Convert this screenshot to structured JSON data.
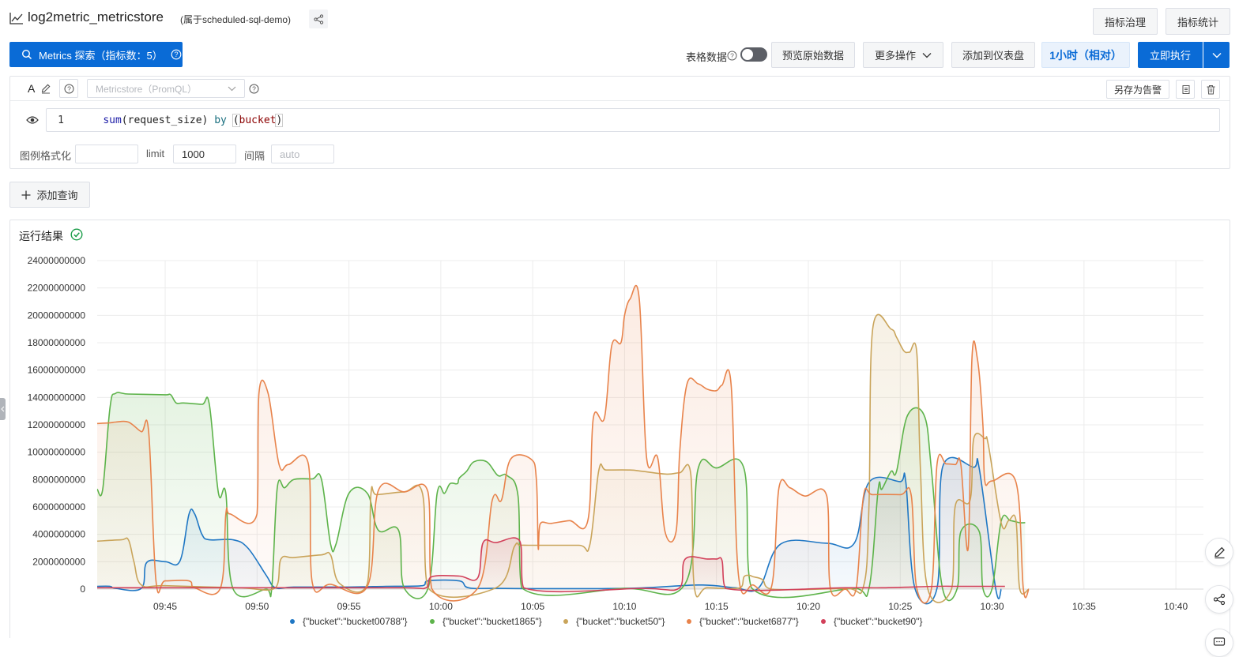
{
  "header": {
    "title": "log2metric_metricstore",
    "subtitle": "(属于scheduled-sql-demo)",
    "buttons": {
      "governance": "指标治理",
      "stats": "指标统计"
    }
  },
  "toolbar": {
    "explore_label": "Metrics 探索（指标数：5）",
    "table_data_label": "表格数据",
    "preview_raw": "预览原始数据",
    "more_actions": "更多操作",
    "add_dashboard": "添加到仪表盘",
    "time_range": "1小时（相对）",
    "run_now": "立即执行"
  },
  "query": {
    "mode_letter": "A",
    "source_placeholder": "Metricstore（PromQL）",
    "save_alert": "另存为告警",
    "line_number": "1",
    "code": {
      "fn": "sum",
      "open": "(",
      "metric": "request_size",
      "close": ")",
      "kw": "by",
      "gopen": "(",
      "group": "bucket",
      "gclose": ")"
    },
    "legend_format_label": "图例格式化",
    "legend_format_value": "",
    "limit_label": "limit",
    "limit_value": "1000",
    "interval_label": "间隔",
    "interval_placeholder": "auto"
  },
  "add_query": "添加查询",
  "result": {
    "title": "运行结果"
  },
  "colors": {
    "primary": "#0a6bd6",
    "bucket00788": "#1f77c4",
    "bucket1865": "#5db34a",
    "bucket50": "#c9a45a",
    "bucket6877": "#e8834b",
    "bucket90": "#d2405a",
    "success": "#1c9d4a"
  },
  "chart_data": {
    "type": "area",
    "y_ticks": [
      "24000000000",
      "22000000000",
      "20000000000",
      "18000000000",
      "16000000000",
      "14000000000",
      "12000000000",
      "10000000000",
      "8000000000",
      "6000000000",
      "4000000000",
      "2000000000",
      "0"
    ],
    "ylim": [
      0,
      24000000000
    ],
    "x_ticks": [
      "09:45",
      "09:50",
      "09:55",
      "10:00",
      "10:05",
      "10:10",
      "10:15",
      "10:20",
      "10:25",
      "10:30",
      "10:35",
      "10:40"
    ],
    "x_start_minute": 581.3,
    "x_end_minute": 641.5,
    "grid": true,
    "legend_position": "bottom",
    "series": [
      {
        "name": "{\"bucket\":\"bucket00788\"}",
        "color_key": "bucket00788",
        "points": [
          [
            581.3,
            0.2
          ],
          [
            582,
            0.2
          ],
          [
            582.3,
            0.05
          ],
          [
            583.7,
            0.05
          ],
          [
            584,
            1.95
          ],
          [
            585,
            2.0
          ],
          [
            585.8,
            2.05
          ],
          [
            586.3,
            5.5
          ],
          [
            586.6,
            5.5
          ],
          [
            587,
            4.0
          ],
          [
            587.4,
            3.6
          ],
          [
            588.7,
            3.6
          ],
          [
            589.5,
            3.0
          ],
          [
            590.5,
            1.0
          ],
          [
            591,
            0.1
          ],
          [
            592,
            0.15
          ],
          [
            595,
            0.15
          ],
          [
            597,
            0.2
          ],
          [
            599,
            0.25
          ],
          [
            599.3,
            0.6
          ],
          [
            601,
            0.6
          ],
          [
            601.5,
            0.1
          ],
          [
            603,
            0.05
          ],
          [
            610,
            0.05
          ],
          [
            614,
            0.3
          ],
          [
            616,
            0.1
          ],
          [
            617.3,
            0.1
          ],
          [
            618.5,
            3.3
          ],
          [
            621,
            3.35
          ],
          [
            622.5,
            3.35
          ],
          [
            623.3,
            7.8
          ],
          [
            625,
            7.85
          ],
          [
            625.3,
            7.85
          ],
          [
            625.8,
            0.05
          ],
          [
            627,
            0.05
          ],
          [
            627.3,
            8.9
          ],
          [
            629,
            8.9
          ],
          [
            629.3,
            8.8
          ],
          [
            630.2,
            0.0
          ],
          [
            630.5,
            0.0
          ]
        ]
      },
      {
        "name": "{\"bucket\":\"bucket1865\"}",
        "color_key": "bucket1865",
        "points": [
          [
            581.3,
            7.3
          ],
          [
            581.6,
            7.3
          ],
          [
            582,
            13.3
          ],
          [
            582.3,
            14.3
          ],
          [
            583,
            14.25
          ],
          [
            585,
            14.2
          ],
          [
            585.3,
            14.2
          ],
          [
            585.6,
            13.6
          ],
          [
            586,
            13.6
          ],
          [
            587,
            13.5
          ],
          [
            587.4,
            13.5
          ],
          [
            587.9,
            7.0
          ],
          [
            588.3,
            7.0
          ],
          [
            588.7,
            0.0
          ],
          [
            590.5,
            0.0
          ],
          [
            590.8,
            0.05
          ],
          [
            591.1,
            7.4
          ],
          [
            591.5,
            7.4
          ],
          [
            592,
            8.0
          ],
          [
            593,
            8.05
          ],
          [
            593.5,
            8.05
          ],
          [
            594,
            3.3
          ],
          [
            594.3,
            3.3
          ],
          [
            595,
            7.0
          ],
          [
            596,
            7.0
          ],
          [
            596.6,
            4.3
          ],
          [
            597.7,
            4.3
          ],
          [
            598,
            0.1
          ],
          [
            599.3,
            0.05
          ],
          [
            599.8,
            7.0
          ],
          [
            600.2,
            7.0
          ],
          [
            600.5,
            7.7
          ],
          [
            600.9,
            7.7
          ],
          [
            601,
            8.1
          ],
          [
            601.4,
            8.6
          ],
          [
            601.8,
            9.3
          ],
          [
            602.5,
            9.3
          ],
          [
            603.1,
            8.3
          ],
          [
            603.6,
            8.3
          ],
          [
            604.2,
            6.8
          ],
          [
            604.4,
            0.1
          ],
          [
            610,
            0.05
          ],
          [
            613.3,
            0.4
          ],
          [
            614,
            8.8
          ],
          [
            615,
            8.85
          ],
          [
            616.5,
            8.8
          ],
          [
            616.9,
            0.1
          ],
          [
            622.5,
            0.05
          ],
          [
            623.3,
            0.05
          ],
          [
            623.8,
            7.3
          ],
          [
            624,
            7.3
          ],
          [
            624.5,
            8.6
          ],
          [
            624.8,
            8.6
          ],
          [
            625.4,
            12.7
          ],
          [
            626.3,
            12.7
          ],
          [
            626.7,
            8.7
          ],
          [
            627.3,
            0.05
          ],
          [
            628.1,
            0.05
          ],
          [
            628.3,
            4.2
          ],
          [
            629.3,
            4.2
          ],
          [
            629.5,
            0.05
          ],
          [
            630,
            0.05
          ],
          [
            630.5,
            5.0
          ],
          [
            631,
            5.0
          ],
          [
            631.5,
            4.85
          ],
          [
            631.8,
            4.85
          ]
        ]
      },
      {
        "name": "{\"bucket\":\"bucket50\"}",
        "color_key": "bucket50",
        "points": [
          [
            581.3,
            3.5
          ],
          [
            582.6,
            3.6
          ],
          [
            583,
            3.6
          ],
          [
            583.3,
            2.0
          ],
          [
            583.7,
            0.3
          ],
          [
            585,
            0.25
          ],
          [
            589,
            0.1
          ],
          [
            591,
            0.1
          ],
          [
            591.3,
            2.2
          ],
          [
            592,
            2.3
          ],
          [
            593.5,
            2.5
          ],
          [
            594,
            2.5
          ],
          [
            594.5,
            0.4
          ],
          [
            596,
            0.4
          ],
          [
            596.2,
            7.0
          ],
          [
            596.5,
            6.9
          ],
          [
            598,
            7.1
          ],
          [
            599,
            7.0
          ],
          [
            599.3,
            0.1
          ],
          [
            603,
            0.1
          ],
          [
            604,
            3.1
          ],
          [
            604.3,
            3.2
          ],
          [
            605,
            3.2
          ],
          [
            607.5,
            3.2
          ],
          [
            608.1,
            3.2
          ],
          [
            608.6,
            8.7
          ],
          [
            609,
            8.7
          ],
          [
            610.3,
            8.7
          ],
          [
            611,
            8.6
          ],
          [
            612.3,
            8.4
          ],
          [
            613,
            8.5
          ],
          [
            613.6,
            8.4
          ],
          [
            613.8,
            0.1
          ],
          [
            614.5,
            0.1
          ],
          [
            616.3,
            0.1
          ],
          [
            616.5,
            0.9
          ],
          [
            616.8,
            1.0
          ],
          [
            617,
            0.9
          ],
          [
            617.5,
            0.7
          ],
          [
            618,
            0.0
          ],
          [
            622,
            0.05
          ],
          [
            623,
            0.2
          ],
          [
            623.3,
            6.1
          ],
          [
            623.5,
            19.0
          ],
          [
            624.5,
            19.0
          ],
          [
            624.8,
            18.4
          ],
          [
            625.2,
            17.4
          ],
          [
            625.5,
            17.3
          ],
          [
            625.9,
            17.3
          ],
          [
            626.1,
            8.7
          ],
          [
            626.5,
            0.0
          ],
          [
            627.8,
            0.05
          ],
          [
            628,
            6.1
          ],
          [
            628.8,
            6.5
          ],
          [
            629,
            11.0
          ],
          [
            629.6,
            11.0
          ],
          [
            629.8,
            10.5
          ],
          [
            630.5,
            4.8
          ],
          [
            630.9,
            5.0
          ],
          [
            631.3,
            5.0
          ],
          [
            631.5,
            0.05
          ],
          [
            632,
            0.0
          ]
        ]
      },
      {
        "name": "{\"bucket\":\"bucket6877\"}",
        "color_key": "bucket6877",
        "points": [
          [
            581.3,
            12.1
          ],
          [
            582,
            12.15
          ],
          [
            582.3,
            12.2
          ],
          [
            583,
            12.2
          ],
          [
            583.7,
            11.5
          ],
          [
            584.1,
            11.5
          ],
          [
            584.5,
            0.6
          ],
          [
            585,
            0.6
          ],
          [
            586.3,
            0.6
          ],
          [
            586.6,
            0.1
          ],
          [
            588,
            0.05
          ],
          [
            588.3,
            5.5
          ],
          [
            588.5,
            5.5
          ],
          [
            590,
            5.5
          ],
          [
            590.1,
            14.3
          ],
          [
            590.6,
            14.3
          ],
          [
            591.2,
            9.1
          ],
          [
            591.7,
            9.1
          ],
          [
            592.8,
            9.1
          ],
          [
            593,
            0.5
          ],
          [
            594,
            0.35
          ],
          [
            596,
            0.2
          ],
          [
            596.6,
            7.2
          ],
          [
            598,
            7.1
          ],
          [
            599.3,
            7.1
          ],
          [
            599.5,
            0.05
          ],
          [
            602,
            0.05
          ],
          [
            602.8,
            6.5
          ],
          [
            603.3,
            6.5
          ],
          [
            603.8,
            9.5
          ],
          [
            604.9,
            9.5
          ],
          [
            605.2,
            8.0
          ],
          [
            605.3,
            3.0
          ],
          [
            605.4,
            4.75
          ],
          [
            606,
            4.8
          ],
          [
            607,
            5.0
          ],
          [
            608,
            5.0
          ],
          [
            608.3,
            12.5
          ],
          [
            608.9,
            12.5
          ],
          [
            609.3,
            17.8
          ],
          [
            609.8,
            18.0
          ],
          [
            610,
            20.0
          ],
          [
            610.3,
            21.2
          ],
          [
            610.8,
            21.2
          ],
          [
            611.2,
            9.6
          ],
          [
            611.8,
            9.6
          ],
          [
            612.2,
            4.2
          ],
          [
            612.8,
            4.2
          ],
          [
            613,
            10.0
          ],
          [
            613.4,
            15.0
          ],
          [
            614,
            15.0
          ],
          [
            614.5,
            14.6
          ],
          [
            615,
            14.5
          ],
          [
            615.3,
            14.9
          ],
          [
            615.8,
            14.9
          ],
          [
            616.2,
            1.0
          ],
          [
            617,
            0.3
          ],
          [
            618,
            0.2
          ],
          [
            618.4,
            7.4
          ],
          [
            619,
            7.4
          ],
          [
            619.8,
            6.8
          ],
          [
            621,
            6.8
          ],
          [
            621.2,
            0.05
          ],
          [
            622,
            0.0
          ],
          [
            622.6,
            0.05
          ],
          [
            623,
            6.8
          ],
          [
            623.5,
            6.9
          ],
          [
            625,
            6.9
          ],
          [
            625.6,
            6.85
          ],
          [
            625.9,
            0.05
          ],
          [
            626.7,
            0.05
          ],
          [
            627,
            9.1
          ],
          [
            627.5,
            9.15
          ],
          [
            628,
            9.1
          ],
          [
            628.3,
            9.1
          ],
          [
            628.7,
            3.0
          ],
          [
            628.9,
            16.8
          ],
          [
            629.2,
            16.8
          ],
          [
            629.5,
            12.0
          ],
          [
            629.6,
            7.9
          ],
          [
            630,
            7.9
          ],
          [
            631.3,
            7.8
          ],
          [
            631.7,
            0.0
          ],
          [
            632,
            0.0
          ]
        ]
      },
      {
        "name": "{\"bucket\":\"bucket90\"}",
        "color_key": "bucket90",
        "points": [
          [
            581.3,
            0.1
          ],
          [
            588,
            0.1
          ],
          [
            592,
            0.1
          ],
          [
            598,
            0.1
          ],
          [
            599.2,
            0.1
          ],
          [
            599.5,
            0.9
          ],
          [
            601,
            0.95
          ],
          [
            602,
            0.8
          ],
          [
            602.3,
            3.4
          ],
          [
            603,
            3.4
          ],
          [
            604.3,
            3.5
          ],
          [
            604.5,
            0.1
          ],
          [
            611,
            0.05
          ],
          [
            613,
            0.1
          ],
          [
            613.3,
            2.2
          ],
          [
            614.5,
            2.2
          ],
          [
            615,
            2.2
          ],
          [
            615.3,
            2.1
          ],
          [
            615.5,
            0.05
          ],
          [
            622,
            0.1
          ],
          [
            624,
            0.1
          ],
          [
            627,
            0.2
          ],
          [
            628,
            0.2
          ],
          [
            630,
            0.2
          ],
          [
            630.7,
            0.2
          ]
        ]
      }
    ]
  }
}
